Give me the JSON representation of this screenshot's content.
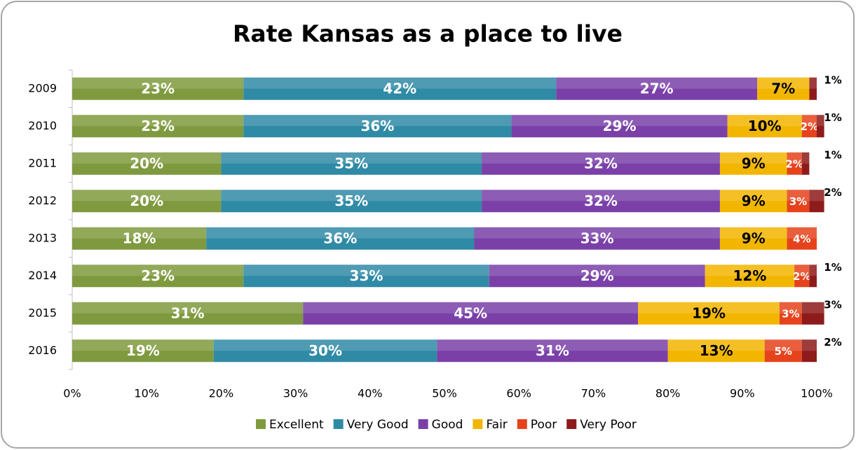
{
  "chart_data": {
    "type": "stacked-bar-horizontal",
    "title": "Rate Kansas as a place to live",
    "categories": [
      "2009",
      "2010",
      "2011",
      "2012",
      "2013",
      "2014",
      "2015",
      "2016"
    ],
    "series": [
      {
        "name": "Excellent",
        "color": "#7f9a3e",
        "values": [
          23,
          23,
          20,
          20,
          18,
          23,
          31,
          19
        ],
        "value_labels": [
          "23%",
          "23%",
          "20%",
          "20%",
          "18%",
          "23%",
          "31%",
          "19%"
        ]
      },
      {
        "name": "Very Good",
        "color": "#2f8aa6",
        "values": [
          42,
          36,
          35,
          35,
          36,
          33,
          null,
          30
        ],
        "value_labels": [
          "42%",
          "36%",
          "35%",
          "35%",
          "36%",
          "33%",
          null,
          "30%"
        ]
      },
      {
        "name": "Good",
        "color": "#7a40a8",
        "values": [
          27,
          29,
          32,
          32,
          33,
          29,
          45,
          31
        ],
        "value_labels": [
          "27%",
          "29%",
          "32%",
          "32%",
          "33%",
          "29%",
          "45%",
          "31%"
        ]
      },
      {
        "name": "Fair",
        "color": "#f2b600",
        "values": [
          7,
          10,
          9,
          9,
          9,
          12,
          19,
          13
        ],
        "value_labels": [
          "7%",
          "10%",
          "9%",
          "9%",
          "9%",
          "12%",
          "19%",
          "13%"
        ]
      },
      {
        "name": "Poor",
        "color": "#e6431d",
        "values": [
          null,
          2,
          2,
          3,
          4,
          2,
          3,
          5
        ],
        "value_labels": [
          null,
          "2%",
          "2%",
          "3%",
          "4%",
          "2%",
          "3%",
          "5%"
        ]
      },
      {
        "name": "Very Poor",
        "color": "#8e1b1b",
        "values": [
          1,
          1,
          1,
          2,
          null,
          1,
          3,
          2
        ],
        "value_labels": [
          "1%",
          "1%",
          "1%",
          "2%",
          null,
          "1%",
          "3%",
          "2%"
        ]
      }
    ],
    "xlim": [
      0,
      100
    ],
    "xticks": [
      {
        "value": 0,
        "label": "0%"
      },
      {
        "value": 10,
        "label": "10%"
      },
      {
        "value": 20,
        "label": "20%"
      },
      {
        "value": 30,
        "label": "30%"
      },
      {
        "value": 40,
        "label": "40%"
      },
      {
        "value": 50,
        "label": "50%"
      },
      {
        "value": 60,
        "label": "60%"
      },
      {
        "value": 70,
        "label": "70%"
      },
      {
        "value": 80,
        "label": "80%"
      },
      {
        "value": 90,
        "label": "90%"
      },
      {
        "value": 100,
        "label": "100%"
      }
    ],
    "legend": "bottom"
  }
}
